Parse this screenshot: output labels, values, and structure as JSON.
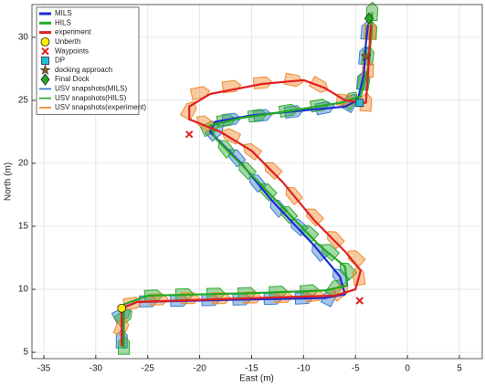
{
  "chart_data": {
    "type": "line",
    "xlabel": "East (m)",
    "ylabel": "North (m)",
    "xlim": [
      -36.14,
      7.2
    ],
    "ylim": [
      4.5,
      32.6
    ],
    "xticks": [
      -35,
      -30,
      -25,
      -20,
      -15,
      -10,
      -5,
      0,
      5
    ],
    "yticks": [
      5,
      10,
      15,
      20,
      25,
      30
    ],
    "grid": true,
    "legend": "upper left",
    "series": [
      {
        "name": "MILS",
        "color": "#1f2bd0",
        "x": [
          -27.5,
          -27.5,
          -26,
          -15,
          -8,
          -6,
          -6.5,
          -9,
          -13,
          -16,
          -19,
          -18.5,
          -15,
          -10,
          -6,
          -4.8,
          -4.2,
          -4,
          -3.8
        ],
        "y": [
          5.5,
          8.5,
          9,
          9.2,
          9.3,
          9.6,
          11,
          13.5,
          17,
          20,
          22.5,
          23.3,
          23.8,
          24.2,
          24.5,
          25,
          27,
          29.5,
          31
        ]
      },
      {
        "name": "HILS",
        "color": "#22aa22",
        "x": [
          -27.3,
          -27.3,
          -25,
          -15,
          -8,
          -5.8,
          -6,
          -8.5,
          -12,
          -15.5,
          -18.5,
          -19,
          -16,
          -11,
          -6.5,
          -4.5,
          -3.8,
          -3.5,
          -3.4
        ],
        "y": [
          5.3,
          8.8,
          9.5,
          9.7,
          9.9,
          10.3,
          11.8,
          13.5,
          16.5,
          19.5,
          22,
          23,
          23.6,
          24.2,
          24.8,
          25.3,
          27.5,
          30,
          32
        ]
      },
      {
        "name": "experiment",
        "color": "#e02020",
        "x": [
          -27.5,
          -27.5,
          -26,
          -15,
          -7,
          -5,
          -4.5,
          -6,
          -9,
          -12,
          -15,
          -18,
          -21,
          -21,
          -19,
          -14,
          -10,
          -8,
          -6,
          -4,
          -3.8,
          -3.6,
          -3.5
        ],
        "y": [
          5.5,
          8.5,
          9,
          9.3,
          9.5,
          10,
          11.5,
          13,
          15.5,
          18.5,
          21,
          22.5,
          23.5,
          24.5,
          25.5,
          26.3,
          26.6,
          26,
          25,
          24.8,
          27,
          30,
          31
        ]
      },
      {
        "name": "Unberth",
        "color": "#ffee00",
        "marker": "circle",
        "x": [
          -27.5
        ],
        "y": [
          8.5
        ]
      },
      {
        "name": "Waypoints",
        "color": "#e02020",
        "marker": "x",
        "x": [
          -21,
          -4.6
        ],
        "y": [
          22.3,
          9.1
        ]
      },
      {
        "name": "DP",
        "color": "#22c0d0",
        "marker": "square",
        "x": [
          -4.6
        ],
        "y": [
          24.8
        ]
      },
      {
        "name": "docking approach",
        "color": "#8b5a2b",
        "marker": "star",
        "x": [
          -4
        ],
        "y": [
          28.5
        ]
      },
      {
        "name": "Final Dock",
        "color": "#22aa22",
        "marker": "diamond",
        "x": [
          -3.7
        ],
        "y": [
          31.5
        ]
      },
      {
        "name": "USV snapshots(MILS)",
        "color": "#3a7fd0",
        "marker": "boat",
        "x": [
          -27.5,
          -27.5,
          -25,
          -22,
          -19,
          -16,
          -13,
          -10,
          -7.5,
          -6.5,
          -8.5,
          -10.5,
          -12.5,
          -14.5,
          -16.5,
          -18.5,
          -17,
          -14,
          -11,
          -8,
          -5.5,
          -4.3,
          -4.1,
          -3.9
        ],
        "y": [
          6,
          8,
          9.05,
          9.1,
          9.15,
          9.2,
          9.25,
          9.3,
          9.4,
          11,
          13,
          15,
          16.5,
          18.5,
          20.5,
          22.5,
          23.5,
          23.8,
          24.1,
          24.4,
          24.8,
          26.5,
          28.5,
          30.5
        ]
      },
      {
        "name": "USV snapshots(HILS)",
        "color": "#33aa33",
        "marker": "boat",
        "x": [
          -27.3,
          -27.3,
          -24.5,
          -21.5,
          -18.5,
          -15.5,
          -12.5,
          -9.5,
          -7,
          -5.8,
          -7.5,
          -9.5,
          -11.5,
          -13.5,
          -15.5,
          -17.5,
          -19,
          -17.5,
          -14.5,
          -11.5,
          -8.5,
          -5.5,
          -4.2,
          -3.8,
          -3.5,
          -3.4
        ],
        "y": [
          5.5,
          7.8,
          9.5,
          9.6,
          9.65,
          9.7,
          9.8,
          9.9,
          10.1,
          11.5,
          13,
          14.5,
          16,
          17.8,
          19.5,
          21.2,
          22.8,
          23.4,
          23.8,
          24.2,
          24.6,
          25,
          26.5,
          28.5,
          30.5,
          32
        ]
      },
      {
        "name": "USV snapshots(experiment)",
        "color": "#f08a30",
        "marker": "boat",
        "x": [
          -27.5,
          -26.5,
          -24,
          -21,
          -18,
          -15,
          -12,
          -9,
          -6.5,
          -4.7,
          -5,
          -7,
          -9,
          -11,
          -13,
          -15,
          -17,
          -19.5,
          -21,
          -20,
          -17,
          -14,
          -11,
          -8.5,
          -6,
          -4,
          -3.8,
          -3.6
        ],
        "y": [
          7,
          8.9,
          9.2,
          9.3,
          9.3,
          9.35,
          9.4,
          9.5,
          9.8,
          11,
          12.5,
          14,
          15.8,
          17.5,
          19.5,
          21,
          22.2,
          23.2,
          24.2,
          25.6,
          26.1,
          26.4,
          26.6,
          26.2,
          25,
          24.8,
          27.5,
          30.5
        ]
      }
    ]
  }
}
